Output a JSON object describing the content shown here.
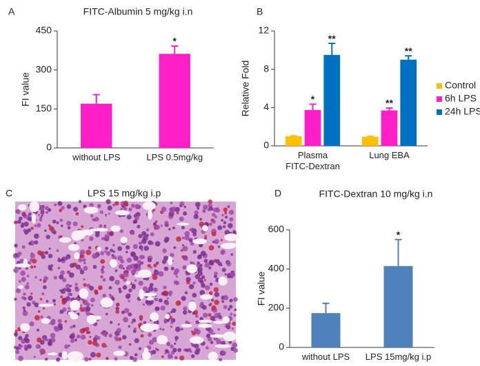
{
  "chart_data": [
    {
      "type": "bar",
      "panel_label": "A",
      "title": "FITC-Albumin 5 mg/kg i.n",
      "y_label": "FI value",
      "categories": [
        "without LPS",
        "LPS 0.5mg/kg"
      ],
      "values": [
        170,
        362
      ],
      "errors": [
        35,
        30
      ],
      "significance": [
        null,
        "*"
      ],
      "color": "#ff1ec8",
      "ylim": [
        0,
        450
      ],
      "yticks": [
        0,
        150,
        300,
        450
      ]
    },
    {
      "type": "bar",
      "panel_label": "B",
      "y_label": "Relative Fold",
      "categories": [
        "Plasma\nFITC-Dextran",
        "Lung EBA"
      ],
      "series": [
        {
          "name": "Control",
          "color": "#ffc000",
          "values": [
            1,
            0.95
          ],
          "errors": [
            0.05,
            0.05
          ],
          "significance": [
            null,
            null
          ]
        },
        {
          "name": "6h LPS",
          "color": "#ff1ec8",
          "values": [
            3.75,
            3.7
          ],
          "errors": [
            0.6,
            0.25
          ],
          "significance": [
            "*",
            "**"
          ]
        },
        {
          "name": "24h LPS",
          "color": "#0070c0",
          "values": [
            9.5,
            9.0
          ],
          "errors": [
            1.2,
            0.4
          ],
          "significance": [
            "**",
            "**"
          ]
        }
      ],
      "ylim": [
        0,
        12
      ],
      "yticks": [
        0,
        4,
        8,
        12
      ],
      "legend": "right"
    },
    {
      "type": "image",
      "panel_label": "C",
      "title": "LPS 15 mg/kg i.p"
    },
    {
      "type": "bar",
      "panel_label": "D",
      "title": "FITC-Dextran 10 mg/kg i.n",
      "y_label": "FI value",
      "categories": [
        "without LPS",
        "LPS 15mg/kg i.p"
      ],
      "values": [
        175,
        415
      ],
      "errors": [
        50,
        135
      ],
      "significance": [
        null,
        "*"
      ],
      "color": "#4f81bd",
      "ylim": [
        0,
        600
      ],
      "yticks": [
        0,
        200,
        400,
        600
      ]
    }
  ]
}
